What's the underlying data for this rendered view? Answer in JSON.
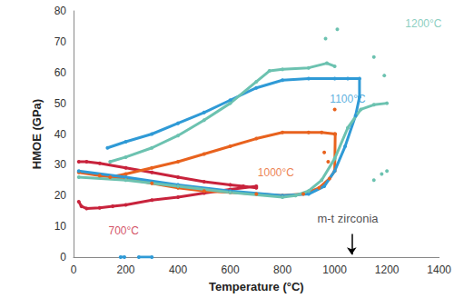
{
  "chart_data": {
    "type": "line",
    "x_label": "Temperature (°C)",
    "y_label": "HMOE (GPa)",
    "xlim": [
      0,
      1400
    ],
    "xticks": [
      0,
      200,
      400,
      600,
      800,
      1000,
      1200,
      1400
    ],
    "ylim": [
      0,
      80
    ],
    "yticks": [
      0,
      10,
      20,
      30,
      40,
      50,
      60,
      70,
      80
    ],
    "grid": false,
    "series": [
      {
        "name": "700°C",
        "color": "#c8233c",
        "label_x": 192,
        "label_y": 8.5,
        "x": [
          20,
          30,
          50,
          100,
          150,
          200,
          300,
          400,
          500,
          600,
          700,
          700,
          650,
          600,
          500,
          400,
          300,
          200,
          100,
          50,
          20
        ],
        "values": [
          18,
          16.5,
          15.8,
          16,
          16.5,
          17,
          18.5,
          19.5,
          20.8,
          22,
          23,
          22.5,
          23,
          23.5,
          24.5,
          26,
          27.5,
          29,
          30.5,
          31,
          31
        ]
      },
      {
        "name": "1000°C",
        "color": "#e8621e",
        "label_x": 775,
        "label_y": 27.5,
        "x": [
          20,
          100,
          200,
          300,
          400,
          500,
          600,
          700,
          800,
          880,
          940,
          980,
          1000,
          1002,
          1000,
          950,
          900,
          800,
          700,
          600,
          500,
          400,
          300,
          200,
          140,
          1000,
          1000,
          1000,
          960,
          960,
          975
        ],
        "values": [
          27.5,
          26.5,
          25.5,
          24,
          22.5,
          21.5,
          21,
          20.5,
          20,
          20.5,
          22.5,
          25.5,
          28,
          40,
          40,
          40.5,
          40.5,
          40.5,
          38.5,
          36,
          33.5,
          31,
          29,
          27,
          26,
          null,
          48,
          null,
          34,
          null,
          31
        ]
      },
      {
        "name": "1100°C",
        "color": "#2f9ad6",
        "label_x": 1050,
        "label_y": 51.5,
        "x": [
          20,
          200,
          400,
          600,
          800,
          900,
          960,
          1000,
          1040,
          1080,
          1095,
          1095,
          1050,
          1000,
          900,
          800,
          700,
          600,
          500,
          400,
          300,
          200,
          130,
          130,
          180,
          195,
          195,
          250,
          300
        ],
        "values": [
          28,
          26,
          23.5,
          21.5,
          20,
          20.5,
          23,
          28,
          36,
          46,
          52,
          58,
          58,
          58,
          58,
          57.5,
          55,
          51,
          47,
          43.5,
          40,
          37.5,
          35.5,
          null,
          0,
          0,
          null,
          0,
          0
        ]
      },
      {
        "name": "1200°C",
        "color": "#6cc2b0",
        "label_x": 1340,
        "label_y": 76,
        "x": [
          20,
          200,
          400,
          600,
          800,
          850,
          900,
          950,
          1000,
          1050,
          1100,
          1150,
          1200,
          1200,
          1000,
          970,
          900,
          800,
          750,
          700,
          600,
          500,
          400,
          300,
          200,
          140,
          140,
          965,
          965,
          1010,
          1010,
          1150,
          1150,
          1190,
          1190,
          1200,
          1200,
          1180,
          1180,
          1150
        ],
        "values": [
          26,
          25,
          23,
          21,
          19.5,
          20,
          21.5,
          25,
          32,
          42,
          48,
          49.5,
          50,
          null,
          62,
          63,
          61.5,
          61,
          60.5,
          57,
          50,
          44.5,
          39.5,
          35.5,
          32.5,
          31,
          null,
          71,
          null,
          74,
          null,
          65,
          null,
          59,
          null,
          28,
          null,
          27,
          null,
          25
        ]
      }
    ],
    "annotations": [
      {
        "text": "m-t zirconia",
        "x": 1050,
        "y": 12.4,
        "arrow_from": [
          1065,
          7.5
        ],
        "arrow_to": [
          1065,
          0.8
        ]
      }
    ]
  }
}
